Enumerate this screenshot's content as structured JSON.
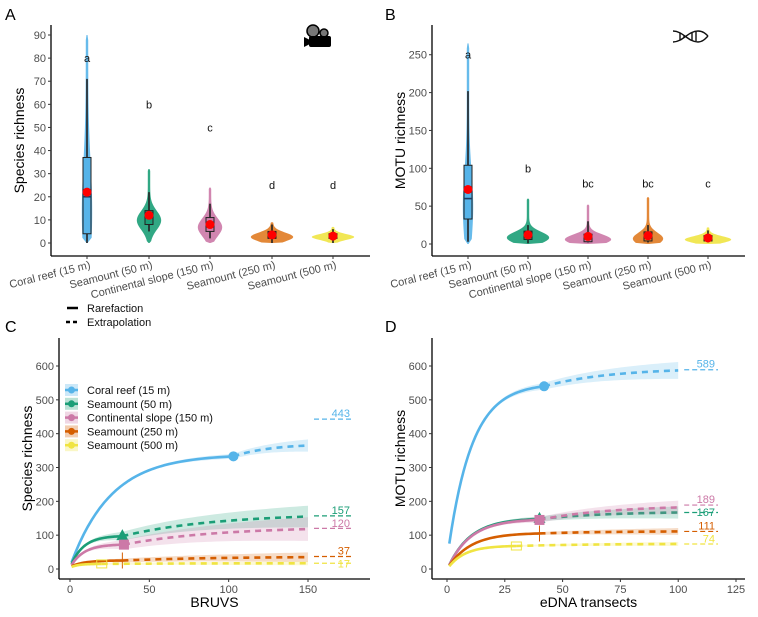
{
  "chart_data": [
    {
      "panel": "A",
      "type": "violin",
      "ylabel": "Species richness",
      "ylim": [
        0,
        90
      ],
      "yticks": [
        0,
        10,
        20,
        30,
        40,
        50,
        60,
        70,
        80,
        90
      ],
      "icon": "video-camera-icon",
      "categories": [
        "Coral reef (15 m)",
        "Seamount (50 m)",
        "Continental slope (150 m)",
        "Seamount (250 m)",
        "Seamount (500 m)"
      ],
      "colors": [
        "#56B4E9",
        "#1B9E77",
        "#CC79A7",
        "#E07B22",
        "#F0E442"
      ],
      "groups": [
        {
          "mean": 22,
          "median": 20,
          "q1": 4,
          "q3": 37,
          "whisker": [
            0,
            71
          ],
          "range": [
            0,
            90
          ],
          "letter": "a",
          "letter_y": 80
        },
        {
          "mean": 12,
          "median": 11,
          "q1": 8,
          "q3": 14,
          "whisker": [
            5,
            22
          ],
          "range": [
            0,
            32
          ],
          "letter": "b",
          "letter_y": 60
        },
        {
          "mean": 8,
          "median": 8,
          "q1": 5,
          "q3": 11,
          "whisker": [
            2,
            17
          ],
          "range": [
            0,
            24
          ],
          "letter": "c",
          "letter_y": 50
        },
        {
          "mean": 3.5,
          "median": 3,
          "q1": 2,
          "q3": 5,
          "whisker": [
            0,
            8
          ],
          "range": [
            0,
            9
          ],
          "letter": "d",
          "letter_y": 25
        },
        {
          "mean": 3,
          "median": 3,
          "q1": 2,
          "q3": 4,
          "whisker": [
            0,
            6
          ],
          "range": [
            0,
            7
          ],
          "letter": "d",
          "letter_y": 25
        }
      ]
    },
    {
      "panel": "B",
      "type": "violin",
      "ylabel": "MOTU richness",
      "ylim": [
        0,
        270
      ],
      "yticks": [
        0,
        50,
        100,
        150,
        200,
        250
      ],
      "icon": "dna-icon",
      "categories": [
        "Coral reef (15 m)",
        "Seamount (50 m)",
        "Continental slope (150 m)",
        "Seamount (250 m)",
        "Seamount (500 m)"
      ],
      "colors": [
        "#56B4E9",
        "#1B9E77",
        "#CC79A7",
        "#E07B22",
        "#F0E442"
      ],
      "groups": [
        {
          "mean": 72,
          "median": 60,
          "q1": 33,
          "q3": 104,
          "whisker": [
            3,
            202
          ],
          "range": [
            0,
            265
          ],
          "letter": "a",
          "letter_y": 250
        },
        {
          "mean": 12,
          "median": 10,
          "q1": 6,
          "q3": 17,
          "whisker": [
            1,
            25
          ],
          "range": [
            0,
            60
          ],
          "letter": "b",
          "letter_y": 100
        },
        {
          "mean": 10,
          "median": 8,
          "q1": 3,
          "q3": 13,
          "whisker": [
            2,
            30
          ],
          "range": [
            0,
            52
          ],
          "letter": "bc",
          "letter_y": 80
        },
        {
          "mean": 11,
          "median": 9,
          "q1": 4,
          "q3": 16,
          "whisker": [
            2,
            25
          ],
          "range": [
            0,
            62
          ],
          "letter": "bc",
          "letter_y": 80
        },
        {
          "mean": 8,
          "median": 7,
          "q1": 4,
          "q3": 11,
          "whisker": [
            2,
            18
          ],
          "range": [
            0,
            22
          ],
          "letter": "c",
          "letter_y": 80
        }
      ]
    },
    {
      "panel": "C",
      "type": "line",
      "xlabel": "BRUVS",
      "ylabel": "Species richness",
      "xlim": [
        -5,
        185
      ],
      "ylim": [
        -30,
        660
      ],
      "xticks": [
        0,
        50,
        100,
        150
      ],
      "yticks": [
        0,
        100,
        200,
        300,
        400,
        500,
        600
      ],
      "linetype_legend": [
        "Rarefaction",
        "Extrapolation"
      ],
      "series": [
        {
          "name": "Coral reef (15 m)",
          "color": "#56B4E9",
          "marker": "circle",
          "start": [
            1,
            20
          ],
          "observed": [
            103,
            333
          ],
          "end": [
            150,
            365
          ],
          "ci": 18,
          "asymptote": 443
        },
        {
          "name": "Seamount (50 m)",
          "color": "#1B9E77",
          "marker": "triangle",
          "start": [
            1,
            15
          ],
          "observed": [
            33,
            97
          ],
          "end": [
            150,
            155
          ],
          "ci": 32,
          "asymptote": 157
        },
        {
          "name": "Continental slope (150 m)",
          "color": "#CC79A7",
          "marker": "square",
          "start": [
            1,
            12
          ],
          "observed": [
            34,
            72
          ],
          "end": [
            150,
            118
          ],
          "ci": 35,
          "asymptote": 120
        },
        {
          "name": "Seamount (250 m)",
          "color": "#D55E00",
          "marker": "plus",
          "start": [
            1,
            8
          ],
          "observed": [
            33,
            25
          ],
          "end": [
            150,
            35
          ],
          "ci": 14,
          "asymptote": 37
        },
        {
          "name": "Seamount (500 m)",
          "color": "#F0E442",
          "marker": "square-cross",
          "start": [
            1,
            6
          ],
          "observed": [
            20,
            15
          ],
          "end": [
            150,
            17
          ],
          "ci": 6,
          "asymptote": 17
        }
      ]
    },
    {
      "panel": "D",
      "type": "line",
      "xlabel": "eDNA transects",
      "ylabel": "MOTU richness",
      "xlim": [
        -5,
        127
      ],
      "ylim": [
        -30,
        660
      ],
      "xticks": [
        0,
        25,
        50,
        75,
        100,
        125
      ],
      "yticks": [
        0,
        100,
        200,
        300,
        400,
        500,
        600
      ],
      "series": [
        {
          "name": "Coral reef (15 m)",
          "color": "#56B4E9",
          "marker": "circle",
          "start": [
            1,
            75
          ],
          "observed": [
            42,
            540
          ],
          "end": [
            100,
            587
          ],
          "ci": 25,
          "asymptote": 589
        },
        {
          "name": "Seamount (50 m)",
          "color": "#1B9E77",
          "marker": "triangle",
          "start": [
            1,
            12
          ],
          "observed": [
            40,
            148
          ],
          "end": [
            100,
            167
          ],
          "ci": 18,
          "asymptote": 167
        },
        {
          "name": "Continental slope (150 m)",
          "color": "#CC79A7",
          "marker": "square",
          "start": [
            1,
            12
          ],
          "observed": [
            40,
            145
          ],
          "end": [
            100,
            182
          ],
          "ci": 20,
          "asymptote": 189
        },
        {
          "name": "Seamount (250 m)",
          "color": "#D55E00",
          "marker": "plus",
          "start": [
            1,
            10
          ],
          "observed": [
            40,
            105
          ],
          "end": [
            100,
            111
          ],
          "ci": 10,
          "asymptote": 111
        },
        {
          "name": "Seamount (500 m)",
          "color": "#F0E442",
          "marker": "square-cross",
          "start": [
            1,
            8
          ],
          "observed": [
            30,
            68
          ],
          "end": [
            100,
            74
          ],
          "ci": 6,
          "asymptote": 74
        }
      ]
    }
  ],
  "panel_labels": [
    "A",
    "B",
    "C",
    "D"
  ]
}
